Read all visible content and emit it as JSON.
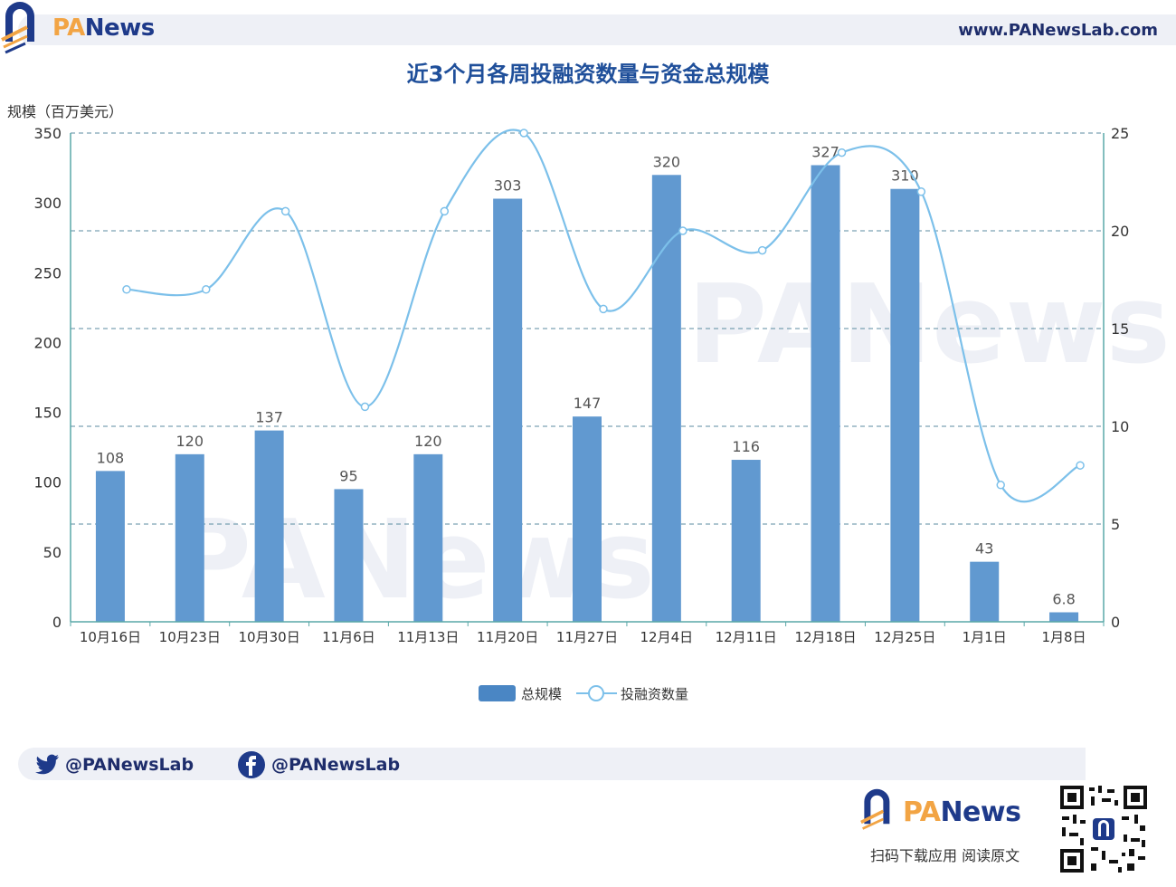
{
  "header": {
    "brand_pa": "PA",
    "brand_rest": "News",
    "url": "www.PANewsLab.com"
  },
  "chart_title": "近3个月各周投融资数量与资金总规模",
  "chart_data": {
    "type": "bar+line",
    "title": "近3个月各周投融资数量与资金总规模",
    "ylabel_left": "规模（百万美元）",
    "ylim_left": [
      0,
      350
    ],
    "yticks_left": [
      0,
      50,
      100,
      150,
      200,
      250,
      300,
      350
    ],
    "ylim_right": [
      0,
      25
    ],
    "yticks_right": [
      0,
      5,
      10,
      15,
      20,
      25
    ],
    "categories": [
      "10月16日",
      "10月23日",
      "10月30日",
      "11月6日",
      "11月13日",
      "11月20日",
      "11月27日",
      "12月4日",
      "12月11日",
      "12月18日",
      "12月25日",
      "1月1日",
      "1月8日"
    ],
    "series": [
      {
        "name": "总规模",
        "type": "bar",
        "axis": "left",
        "values": [
          108,
          120,
          137,
          95,
          120,
          303,
          147,
          320,
          116,
          327,
          310,
          43,
          6.8
        ],
        "labels": [
          "108",
          "120",
          "137",
          "95",
          "120",
          "303",
          "147",
          "320",
          "116",
          "327",
          "310",
          "43",
          "6.8"
        ]
      },
      {
        "name": "投融资数量",
        "type": "line",
        "axis": "right",
        "smooth": true,
        "values": [
          17,
          17,
          21,
          11,
          21,
          25,
          16,
          20,
          19,
          24,
          22,
          7,
          8
        ]
      }
    ],
    "legend_position": "bottom-center",
    "colors": {
      "bar": "#6199d0",
      "line": "#7cc0ea",
      "axis": "#5aa8a8",
      "grid": "#5b8ba0"
    }
  },
  "footer": {
    "twitter": "@PANewsLab",
    "facebook": "@PANewsLab",
    "brand_pa": "PA",
    "brand_rest": "News",
    "tagline": "扫码下载应用  阅读原文"
  },
  "icons": [
    "logo-icon",
    "twitter-icon",
    "facebook-icon",
    "qr-code"
  ]
}
